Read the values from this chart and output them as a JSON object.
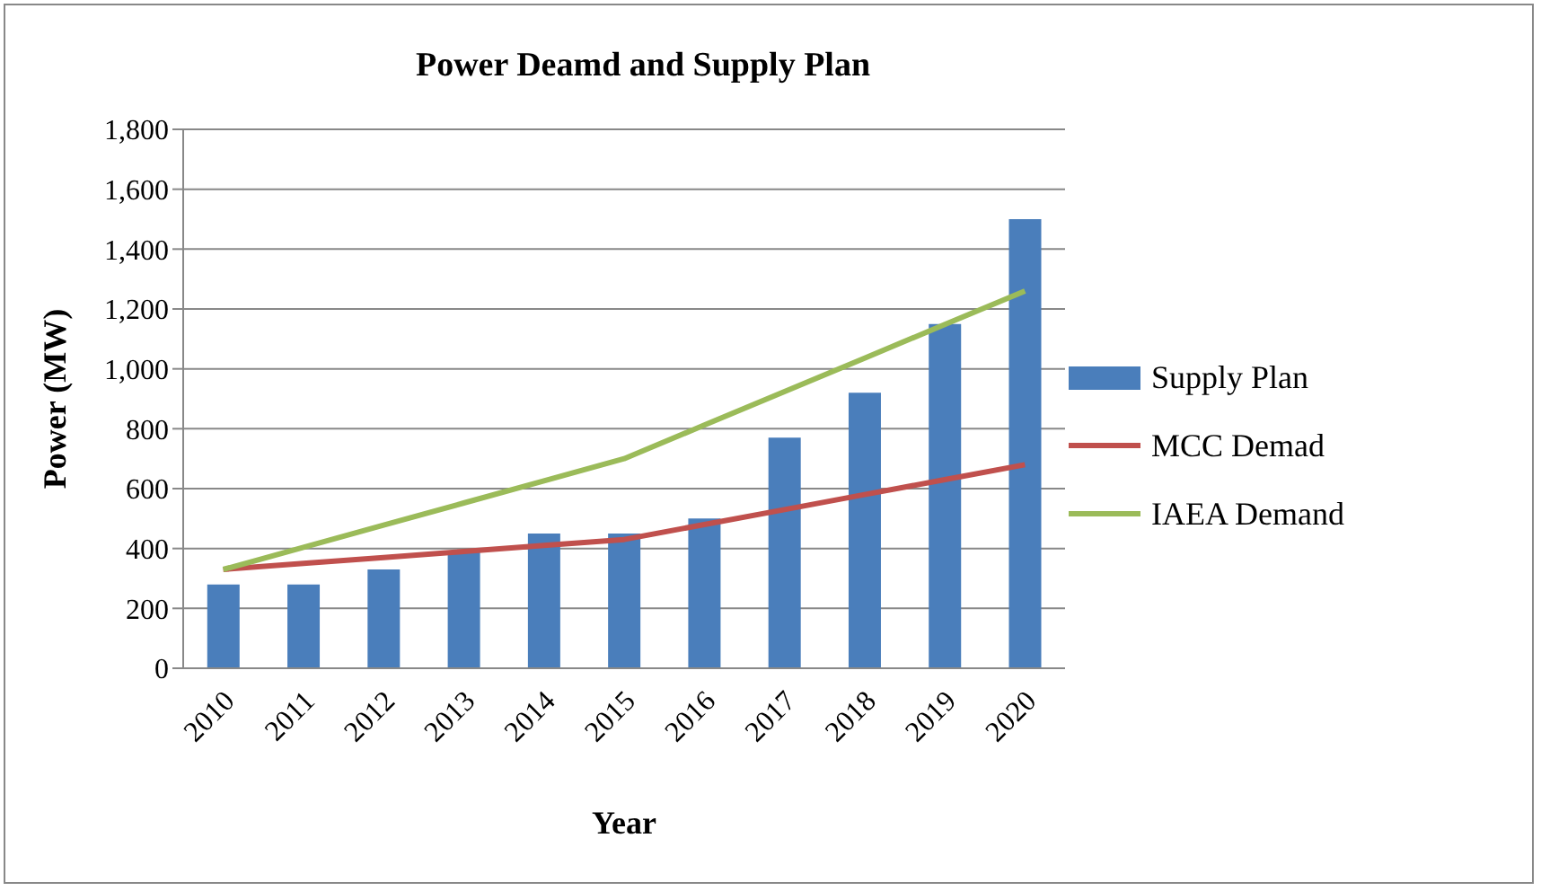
{
  "chart_data": {
    "type": "bar",
    "title": "Power Deamd and Supply Plan",
    "xlabel": "Year",
    "ylabel": "Power (MW)",
    "categories": [
      "2010",
      "2011",
      "2012",
      "2013",
      "2014",
      "2015",
      "2016",
      "2017",
      "2018",
      "2019",
      "2020"
    ],
    "series": [
      {
        "name": "Supply Plan",
        "color": "#4a7ebb",
        "values": [
          280,
          280,
          330,
          390,
          450,
          450,
          500,
          770,
          920,
          1150,
          1500
        ]
      },
      {
        "name": "MCC Demad",
        "type": "line",
        "color": "#c0504d",
        "values": [
          330,
          350,
          370,
          390,
          410,
          430,
          480,
          530,
          580,
          630,
          680
        ]
      },
      {
        "name": "IAEA Demand",
        "type": "line",
        "color": "#9bbb59",
        "values": [
          330,
          404,
          478,
          552,
          626,
          700,
          812,
          924,
          1036,
          1148,
          1260
        ]
      }
    ],
    "ylim": [
      0,
      1800
    ],
    "yticks": [
      0,
      200,
      400,
      600,
      800,
      {
        "value": 1000,
        "label": "1,000"
      },
      {
        "value": 1200,
        "label": "1,200"
      },
      {
        "value": 1400,
        "label": "1,400"
      },
      {
        "value": 1600,
        "label": "1,600"
      },
      {
        "value": 1800,
        "label": "1,800"
      }
    ],
    "grid": "y",
    "legend": "right",
    "marker": "none"
  }
}
